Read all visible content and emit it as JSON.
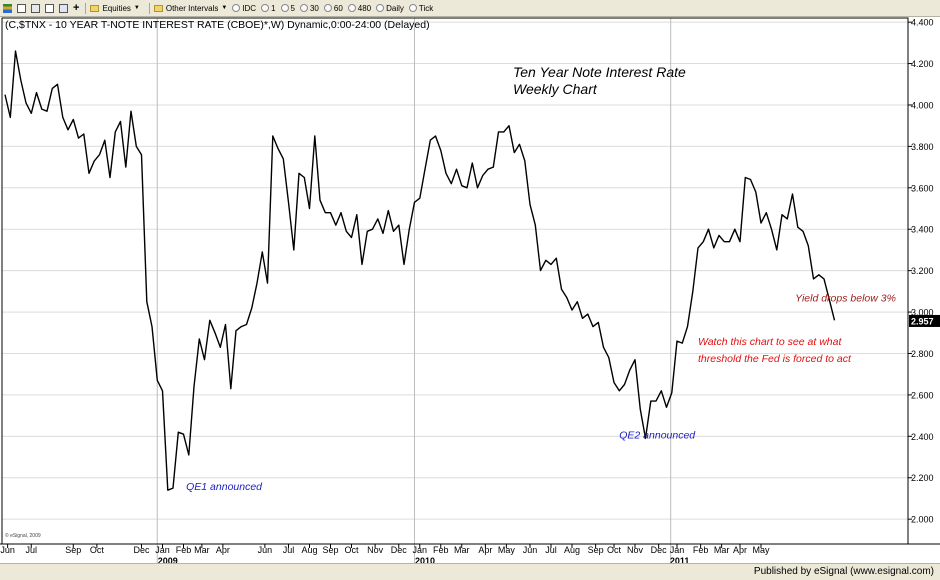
{
  "toolbar": {
    "items": [
      "Equities",
      "Other Intervals",
      "IDC",
      "1",
      "5",
      "30",
      "60",
      "480",
      "Daily",
      "Tick"
    ]
  },
  "footer": {
    "published_by": "Published by eSignal (www.esignal.com)"
  },
  "chart_data": {
    "type": "line",
    "header": "(C,$TNX - 10 YEAR T-NOTE INTEREST RATE (CBOE)*,W) Dynamic,0:00-24:00 (Delayed)",
    "title": "Ten Year Note Interest Rate",
    "subtitle": "Weekly Chart",
    "watermark": "© eSignal, 2009",
    "ylim": [
      1.88,
      4.42
    ],
    "y_ticks": [
      {
        "v": 4.4,
        "label": "4.400"
      },
      {
        "v": 4.2,
        "label": "4.200"
      },
      {
        "v": 4.0,
        "label": "4.000"
      },
      {
        "v": 3.8,
        "label": "3.800"
      },
      {
        "v": 3.6,
        "label": "3.600"
      },
      {
        "v": 3.4,
        "label": "3.400"
      },
      {
        "v": 3.2,
        "label": "3.200"
      },
      {
        "v": 3.0,
        "label": "3.000"
      },
      {
        "v": 2.8,
        "label": "2.800"
      },
      {
        "v": 2.6,
        "label": "2.600"
      },
      {
        "v": 2.4,
        "label": "2.400"
      },
      {
        "v": 2.2,
        "label": "2.200"
      },
      {
        "v": 2.0,
        "label": "2.000"
      }
    ],
    "last_value": {
      "v": 2.957,
      "label": "2.957"
    },
    "months": [
      {
        "label": "Jun",
        "week": 0.5
      },
      {
        "label": "Jul",
        "week": 5
      },
      {
        "label": "Sep",
        "week": 13
      },
      {
        "label": "Oct",
        "week": 17.5
      },
      {
        "label": "Dec",
        "week": 26
      },
      {
        "label": "Jan",
        "week": 30
      },
      {
        "label": "Feb",
        "week": 34
      },
      {
        "label": "Mar",
        "week": 37.5
      },
      {
        "label": "Apr",
        "week": 41.5
      },
      {
        "label": "Jun",
        "week": 49.5
      },
      {
        "label": "Jul",
        "week": 54
      },
      {
        "label": "Aug",
        "week": 58
      },
      {
        "label": "Sep",
        "week": 62
      },
      {
        "label": "Oct",
        "week": 66
      },
      {
        "label": "Nov",
        "week": 70.5
      },
      {
        "label": "Dec",
        "week": 75
      },
      {
        "label": "Jan",
        "week": 79
      },
      {
        "label": "Feb",
        "week": 83
      },
      {
        "label": "Mar",
        "week": 87
      },
      {
        "label": "Apr",
        "week": 91.5
      },
      {
        "label": "May",
        "week": 95.5
      },
      {
        "label": "Jun",
        "week": 100
      },
      {
        "label": "Jul",
        "week": 104
      },
      {
        "label": "Aug",
        "week": 108
      },
      {
        "label": "Sep",
        "week": 112.5
      },
      {
        "label": "Oct",
        "week": 116
      },
      {
        "label": "Nov",
        "week": 120
      },
      {
        "label": "Dec",
        "week": 124.5
      },
      {
        "label": "Jan",
        "week": 128
      },
      {
        "label": "Feb",
        "week": 132.5
      },
      {
        "label": "Mar",
        "week": 136.5
      },
      {
        "label": "Apr",
        "week": 140
      },
      {
        "label": "May",
        "week": 144
      }
    ],
    "years": [
      {
        "label": "2009",
        "week": 31
      },
      {
        "label": "2010",
        "week": 80
      },
      {
        "label": "2011",
        "week": 128.5
      }
    ],
    "year_lines": [
      29,
      78,
      126.8
    ],
    "series": [
      {
        "values": [
          4.05,
          3.94,
          4.26,
          4.12,
          4.01,
          3.96,
          4.06,
          3.98,
          3.97,
          4.08,
          4.1,
          3.94,
          3.88,
          3.93,
          3.84,
          3.86,
          3.67,
          3.73,
          3.76,
          3.83,
          3.65,
          3.87,
          3.92,
          3.7,
          3.97,
          3.8,
          3.76,
          3.05,
          2.93,
          2.67,
          2.62,
          2.14,
          2.15,
          2.42,
          2.41,
          2.31,
          2.64,
          2.87,
          2.77,
          2.96,
          2.9,
          2.83,
          2.94,
          2.63,
          2.91,
          2.93,
          2.94,
          3.02,
          3.14,
          3.29,
          3.14,
          3.85,
          3.79,
          3.74,
          3.53,
          3.3,
          3.67,
          3.65,
          3.5,
          3.85,
          3.54,
          3.48,
          3.48,
          3.42,
          3.48,
          3.39,
          3.36,
          3.47,
          3.23,
          3.39,
          3.4,
          3.45,
          3.38,
          3.49,
          3.39,
          3.42,
          3.23,
          3.4,
          3.53,
          3.55,
          3.69,
          3.83,
          3.85,
          3.78,
          3.67,
          3.62,
          3.69,
          3.61,
          3.6,
          3.72,
          3.6,
          3.66,
          3.69,
          3.7,
          3.87,
          3.87,
          3.9,
          3.77,
          3.81,
          3.73,
          3.52,
          3.42,
          3.2,
          3.25,
          3.23,
          3.26,
          3.11,
          3.07,
          3.01,
          3.05,
          2.97,
          2.99,
          2.93,
          2.95,
          2.83,
          2.78,
          2.66,
          2.62,
          2.65,
          2.72,
          2.77,
          2.53,
          2.39,
          2.57,
          2.57,
          2.62,
          2.54,
          2.61,
          2.86,
          2.85,
          2.93,
          3.1,
          3.31,
          3.34,
          3.4,
          3.31,
          3.37,
          3.34,
          3.34,
          3.4,
          3.34,
          3.65,
          3.64,
          3.58,
          3.43,
          3.48,
          3.4,
          3.3,
          3.47,
          3.45,
          3.57,
          3.41,
          3.39,
          3.32,
          3.16,
          3.18,
          3.16,
          3.06,
          2.96
        ]
      }
    ],
    "annotations": [
      {
        "text": "QE1 announced",
        "color": "#1f20c4",
        "week": 34.5,
        "value": 2.14
      },
      {
        "text": "QE2 announced",
        "color": "#1f20c4",
        "week": 117,
        "value": 2.39
      },
      {
        "text": "Yield drops below 3%",
        "color": "#9b1c1c",
        "week": 150.5,
        "value": 3.05
      },
      {
        "text": "Watch this chart to see at what",
        "color": "#e01010",
        "week": 132,
        "value": 2.84
      },
      {
        "text": "threshold the Fed is forced to act",
        "color": "#e01010",
        "week": 132,
        "value": 2.76
      }
    ]
  }
}
